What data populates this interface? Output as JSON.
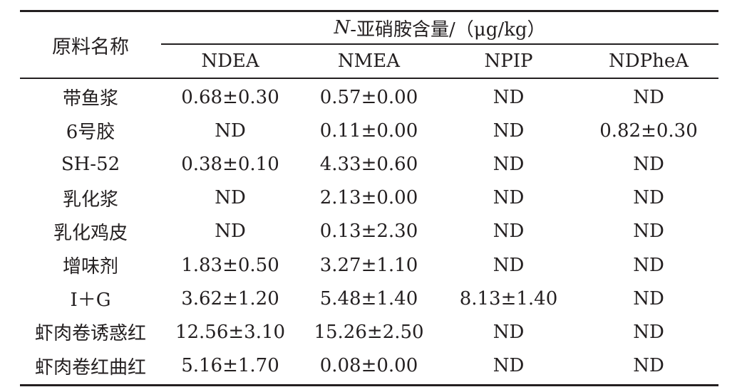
{
  "table": {
    "row_header": "原料名称",
    "group_header_italic": "N",
    "group_header_rest": "-亚硝胺含量/（μg/kg）",
    "columns": [
      "NDEA",
      "NMEA",
      "NPIP",
      "NDPheA"
    ],
    "rows": [
      {
        "name": "带鱼浆",
        "values": [
          "0.68±0.30",
          "0.57±0.00",
          "ND",
          "ND"
        ]
      },
      {
        "name": "6号胶",
        "values": [
          "ND",
          "0.11±0.00",
          "ND",
          "0.82±0.30"
        ]
      },
      {
        "name": "SH-52",
        "values": [
          "0.38±0.10",
          "4.33±0.60",
          "ND",
          "ND"
        ]
      },
      {
        "name": "乳化浆",
        "values": [
          "ND",
          "2.13±0.00",
          "ND",
          "ND"
        ]
      },
      {
        "name": "乳化鸡皮",
        "values": [
          "ND",
          "0.13±2.30",
          "ND",
          "ND"
        ]
      },
      {
        "name": "增味剂",
        "values": [
          "1.83±0.50",
          "3.27±1.10",
          "ND",
          "ND"
        ]
      },
      {
        "name": "I＋G",
        "values": [
          "3.62±1.20",
          "5.48±1.40",
          "8.13±1.40",
          "ND"
        ]
      },
      {
        "name": "虾肉卷诱惑红",
        "values": [
          "12.56±3.10",
          "15.26±2.50",
          "ND",
          "ND"
        ]
      },
      {
        "name": "虾肉卷红曲红",
        "values": [
          "5.16±1.70",
          "0.08±0.00",
          "ND",
          "ND"
        ]
      }
    ]
  }
}
